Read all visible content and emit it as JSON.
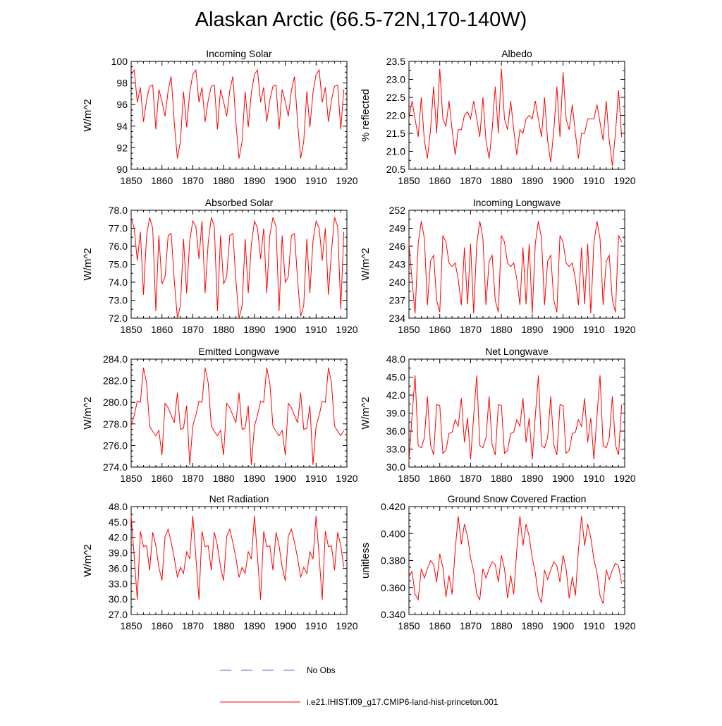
{
  "figure": {
    "title": "Alaskan Arctic (66.5-72N,170-140W)",
    "series_color": "#ff0000",
    "obs_color": "#5a6ad8",
    "legend": [
      {
        "label": "No Obs",
        "style": "dashed"
      },
      {
        "label": "i.e21.IHIST.f09_g17.CMIP6-land-hist-princeton.001",
        "style": "solid"
      }
    ]
  },
  "chart_data": [
    {
      "type": "line",
      "title": "Incoming Solar",
      "xlabel": "",
      "ylabel": "W/m^2",
      "xlim": [
        1850,
        1920
      ],
      "ylim": [
        90,
        100
      ],
      "xticks": [
        1850,
        1860,
        1870,
        1880,
        1890,
        1900,
        1910,
        1920
      ],
      "yticks": [
        "90",
        "92",
        "94",
        "96",
        "98",
        "100"
      ],
      "x_start": 1850,
      "values": [
        98.8,
        99.2,
        96.2,
        97.6,
        94.4,
        96.4,
        97.7,
        97.8,
        93.7,
        97.4,
        96.3,
        94.9,
        97.3,
        98.6,
        94.3,
        91.0,
        92.6,
        97.2,
        93.9,
        97.1,
        98.8,
        99.2,
        96.2,
        97.6,
        94.4,
        96.4,
        97.7,
        97.8,
        93.7,
        97.4,
        96.3,
        94.9,
        97.3,
        98.6,
        94.3,
        91.0,
        92.6,
        97.2,
        93.9,
        97.1,
        98.8,
        99.2,
        96.2,
        97.6,
        94.4,
        96.4,
        97.7,
        97.8,
        93.7,
        97.4,
        96.3,
        94.9,
        97.3,
        98.6,
        94.3,
        91.0,
        92.6,
        97.2,
        93.9,
        97.1,
        98.8,
        99.2,
        96.2,
        97.6,
        94.4,
        96.4,
        97.7,
        97.8,
        93.7,
        97.4
      ]
    },
    {
      "type": "line",
      "title": "Albedo",
      "xlabel": "",
      "ylabel": "% reflected",
      "xlim": [
        1850,
        1920
      ],
      "ylim": [
        20.5,
        23.5
      ],
      "xticks": [
        1850,
        1860,
        1870,
        1880,
        1890,
        1900,
        1910,
        1920
      ],
      "yticks": [
        "20.5",
        "21.0",
        "21.5",
        "22.0",
        "22.5",
        "23.0",
        "23.5"
      ],
      "x_start": 1850,
      "values": [
        21.9,
        22.4,
        21.9,
        21.4,
        22.5,
        21.3,
        20.8,
        21.6,
        22.8,
        21.5,
        23.3,
        21.9,
        21.7,
        22.4,
        21.6,
        20.9,
        21.6,
        21.6,
        22.0,
        22.1,
        21.9,
        22.4,
        21.9,
        21.4,
        22.5,
        21.3,
        20.8,
        21.6,
        22.8,
        21.5,
        23.3,
        21.9,
        21.6,
        22.4,
        21.6,
        20.9,
        21.6,
        21.5,
        21.9,
        22.0,
        21.9,
        22.4,
        21.9,
        21.4,
        22.5,
        21.3,
        20.7,
        21.6,
        22.8,
        21.4,
        23.2,
        21.9,
        21.6,
        22.3,
        21.5,
        20.8,
        21.5,
        21.5,
        21.9,
        21.9,
        21.9,
        22.3,
        21.8,
        21.3,
        22.4,
        21.3,
        20.6,
        21.5,
        22.7,
        21.4
      ]
    },
    {
      "type": "line",
      "title": "Absorbed Solar",
      "xlabel": "",
      "ylabel": "W/m^2",
      "xlim": [
        1850,
        1920
      ],
      "ylim": [
        72.0,
        78.0
      ],
      "xticks": [
        1850,
        1860,
        1870,
        1880,
        1890,
        1900,
        1910,
        1920
      ],
      "yticks": [
        "72.0",
        "73.0",
        "74.0",
        "75.0",
        "76.0",
        "77.0",
        "78.0"
      ],
      "x_start": 1850,
      "values": [
        77.6,
        77.0,
        75.2,
        76.8,
        73.3,
        76.6,
        77.6,
        77.0,
        72.4,
        76.6,
        73.9,
        74.3,
        76.6,
        76.7,
        74.1,
        72.0,
        72.7,
        76.4,
        73.4,
        76.3,
        77.4,
        77.1,
        75.3,
        77.4,
        73.4,
        76.2,
        77.6,
        77.1,
        72.4,
        76.6,
        73.9,
        74.3,
        76.6,
        76.7,
        74.1,
        72.0,
        72.7,
        76.4,
        73.4,
        76.1,
        77.4,
        77.0,
        75.3,
        77.0,
        73.4,
        76.6,
        77.6,
        77.1,
        72.4,
        76.6,
        74.0,
        74.3,
        76.6,
        76.7,
        74.1,
        72.1,
        72.7,
        76.4,
        73.4,
        76.3,
        77.4,
        77.0,
        75.2,
        77.0,
        73.3,
        75.7,
        77.6,
        77.1,
        72.5,
        76.8
      ]
    },
    {
      "type": "line",
      "title": "Incoming Longwave",
      "xlabel": "",
      "ylabel": "W/m^2",
      "xlim": [
        1850,
        1920
      ],
      "ylim": [
        234,
        252
      ],
      "xticks": [
        1850,
        1860,
        1870,
        1880,
        1890,
        1900,
        1910,
        1920
      ],
      "yticks": [
        "234",
        "237",
        "240",
        "243",
        "246",
        "249",
        "252"
      ],
      "x_start": 1850,
      "values": [
        246.6,
        240.2,
        234.8,
        246.4,
        250.2,
        247.3,
        236.2,
        243.5,
        244.5,
        237.0,
        235.0,
        247.8,
        246.7,
        243.2,
        242.6,
        243.2,
        240.5,
        236.2,
        245.8,
        236.3,
        246.4,
        234.8,
        246.4,
        250.2,
        247.3,
        236.2,
        243.5,
        244.5,
        237.0,
        235.0,
        247.8,
        246.7,
        243.2,
        242.6,
        243.2,
        240.5,
        236.2,
        245.8,
        236.3,
        246.4,
        234.8,
        246.4,
        250.2,
        247.3,
        236.2,
        243.5,
        244.5,
        237.0,
        235.0,
        247.8,
        246.7,
        243.2,
        242.6,
        243.2,
        240.5,
        236.2,
        245.8,
        236.3,
        246.4,
        234.8,
        246.4,
        250.2,
        247.3,
        236.2,
        243.5,
        244.5,
        237.0,
        235.0,
        247.8,
        246.7
      ]
    },
    {
      "type": "line",
      "title": "Emitted Longwave",
      "xlabel": "",
      "ylabel": "W/m^2",
      "xlim": [
        1850,
        1920
      ],
      "ylim": [
        274.0,
        284.0
      ],
      "xticks": [
        1850,
        1860,
        1870,
        1880,
        1890,
        1900,
        1910,
        1920
      ],
      "yticks": [
        "274.0",
        "276.0",
        "278.0",
        "280.0",
        "282.0",
        "284.0"
      ],
      "x_start": 1850,
      "values": [
        277.8,
        278.8,
        280.1,
        280.0,
        283.2,
        281.8,
        277.8,
        277.3,
        276.9,
        277.4,
        275.1,
        279.9,
        279.5,
        278.8,
        278.1,
        280.9,
        277.5,
        277.6,
        279.7,
        274.2,
        277.8,
        278.8,
        280.1,
        280.0,
        283.2,
        281.8,
        277.8,
        277.3,
        276.9,
        277.4,
        275.1,
        279.9,
        279.5,
        278.8,
        278.1,
        280.9,
        277.5,
        277.6,
        279.7,
        274.2,
        277.8,
        278.8,
        280.1,
        280.0,
        283.2,
        281.8,
        277.8,
        277.3,
        276.9,
        277.4,
        275.1,
        279.9,
        279.5,
        278.8,
        278.1,
        280.9,
        277.5,
        277.6,
        279.7,
        274.2,
        277.8,
        278.8,
        280.1,
        280.0,
        283.2,
        281.8,
        277.8,
        277.3,
        276.9,
        277.4
      ]
    },
    {
      "type": "line",
      "title": "Net Longwave",
      "xlabel": "",
      "ylabel": "W/m^2",
      "xlim": [
        1850,
        1920
      ],
      "ylim": [
        30.0,
        48.0
      ],
      "xticks": [
        1850,
        1860,
        1870,
        1880,
        1890,
        1900,
        1910,
        1920
      ],
      "yticks": [
        "30.0",
        "33.0",
        "36.0",
        "39.0",
        "42.0",
        "45.0",
        "48.0"
      ],
      "x_start": 1850,
      "values": [
        31.0,
        38.5,
        45.3,
        33.6,
        33.2,
        34.9,
        41.8,
        33.7,
        32.0,
        40.4,
        40.3,
        32.3,
        32.8,
        35.6,
        35.8,
        37.9,
        36.8,
        41.5,
        34.1,
        38.2,
        31.3,
        38.5,
        45.3,
        33.6,
        33.2,
        34.9,
        41.8,
        33.7,
        32.0,
        40.4,
        40.3,
        32.3,
        32.8,
        35.6,
        35.8,
        37.9,
        36.8,
        41.5,
        34.1,
        38.2,
        31.3,
        38.5,
        45.3,
        33.6,
        33.2,
        34.9,
        41.8,
        33.7,
        32.0,
        40.4,
        40.3,
        32.3,
        32.8,
        35.6,
        35.8,
        37.9,
        36.8,
        41.5,
        34.1,
        38.2,
        31.3,
        38.5,
        45.3,
        33.6,
        33.2,
        34.9,
        41.8,
        33.7,
        32.0,
        40.4
      ]
    },
    {
      "type": "line",
      "title": "Net Radiation",
      "xlabel": "",
      "ylabel": "W/m^2",
      "xlim": [
        1850,
        1920
      ],
      "ylim": [
        27.0,
        48.0
      ],
      "xticks": [
        1850,
        1860,
        1870,
        1880,
        1890,
        1900,
        1910,
        1920
      ],
      "yticks": [
        "27.0",
        "30.0",
        "33.0",
        "36.0",
        "39.0",
        "42.0",
        "45.0",
        "48.0"
      ],
      "x_start": 1850,
      "values": [
        46.2,
        38.2,
        29.9,
        43.2,
        40.2,
        40.4,
        35.6,
        43.0,
        40.4,
        36.2,
        33.6,
        42.2,
        43.6,
        41.0,
        38.0,
        34.2,
        36.2,
        35.0,
        39.2,
        37.8,
        46.2,
        38.2,
        29.9,
        43.2,
        40.2,
        40.4,
        35.6,
        43.0,
        40.4,
        36.2,
        33.6,
        42.2,
        43.6,
        41.0,
        38.0,
        34.2,
        36.2,
        35.0,
        39.2,
        37.8,
        46.2,
        38.2,
        29.9,
        43.2,
        40.2,
        40.4,
        35.6,
        43.0,
        40.4,
        36.2,
        33.6,
        42.2,
        43.6,
        41.0,
        38.0,
        34.2,
        36.2,
        35.0,
        39.2,
        37.8,
        46.2,
        38.2,
        29.9,
        43.2,
        40.2,
        40.4,
        35.6,
        43.0,
        40.4,
        36.2
      ]
    },
    {
      "type": "line",
      "title": "Ground Snow Covered Fraction",
      "xlabel": "",
      "ylabel": "unitless",
      "xlim": [
        1850,
        1920
      ],
      "ylim": [
        0.34,
        0.42
      ],
      "xticks": [
        1850,
        1860,
        1870,
        1880,
        1890,
        1900,
        1910,
        1920
      ],
      "yticks": [
        "0.340",
        "0.360",
        "0.380",
        "0.400",
        "0.420"
      ],
      "x_start": 1850,
      "values": [
        0.368,
        0.372,
        0.355,
        0.351,
        0.374,
        0.367,
        0.374,
        0.38,
        0.377,
        0.364,
        0.385,
        0.375,
        0.353,
        0.369,
        0.355,
        0.388,
        0.413,
        0.392,
        0.407,
        0.398,
        0.382,
        0.372,
        0.355,
        0.351,
        0.374,
        0.367,
        0.374,
        0.379,
        0.377,
        0.364,
        0.384,
        0.374,
        0.352,
        0.369,
        0.355,
        0.388,
        0.413,
        0.391,
        0.407,
        0.398,
        0.382,
        0.371,
        0.354,
        0.349,
        0.373,
        0.366,
        0.373,
        0.379,
        0.376,
        0.364,
        0.384,
        0.374,
        0.352,
        0.368,
        0.354,
        0.388,
        0.413,
        0.391,
        0.407,
        0.397,
        0.381,
        0.371,
        0.354,
        0.348,
        0.373,
        0.366,
        0.373,
        0.378,
        0.376,
        0.363
      ]
    }
  ]
}
